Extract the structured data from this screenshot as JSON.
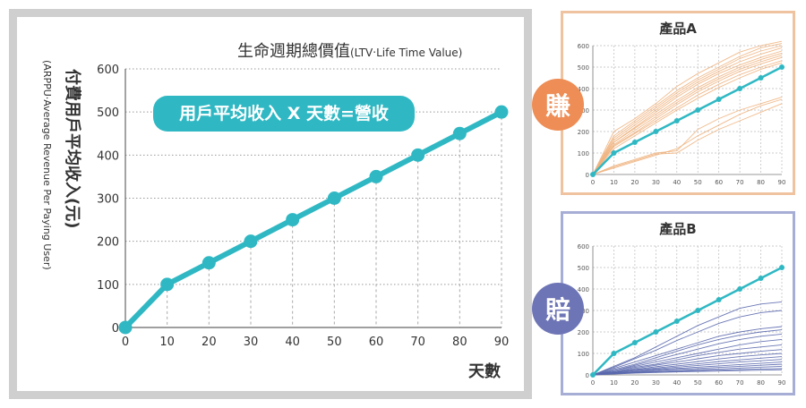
{
  "main": {
    "title": "生命週期總價值",
    "title_sub": "(LTV‧Life Time Value)",
    "ylabel": "付費用戶平均收入(元)",
    "ylabel_sub": "(ARPPU‧Average Revenue Per Paying User)",
    "xlabel": "天數",
    "formula": "用戶平均收入 X 天數=營收"
  },
  "badges": {
    "a": "賺",
    "b": "賠"
  },
  "colors": {
    "teal": "#2fb8c3",
    "orange_line": "#f0b37e",
    "blue_line": "#5a68ad",
    "orange_border": "#f0c3a0",
    "blue_border": "#a7aed6",
    "badge_orange": "#ee8d55",
    "badge_blue": "#6e75b6"
  },
  "chart_data": [
    {
      "type": "line",
      "title": "生命週期總價值(LTV‧Life Time Value)",
      "xlabel": "天數",
      "ylabel": "付費用戶平均收入(元)",
      "x": [
        0,
        10,
        20,
        30,
        40,
        50,
        60,
        70,
        80,
        90
      ],
      "y": [
        0,
        100,
        150,
        200,
        250,
        300,
        350,
        400,
        450,
        500
      ],
      "xlim": [
        0,
        90
      ],
      "ylim": [
        0,
        600
      ],
      "yticks": [
        0,
        100,
        200,
        300,
        400,
        500,
        600
      ],
      "grid": true
    },
    {
      "type": "line",
      "title": "產品A",
      "x": [
        0,
        10,
        20,
        30,
        40,
        50,
        60,
        70,
        80,
        90
      ],
      "xlim": [
        0,
        90
      ],
      "ylim": [
        0,
        600
      ],
      "yticks": [
        0,
        100,
        200,
        300,
        400,
        500,
        600
      ],
      "series": [
        {
          "values": [
            0,
            100,
            150,
            200,
            250,
            300,
            350,
            400,
            450,
            500
          ]
        },
        {
          "values": [
            0,
            200,
            260,
            330,
            410,
            470,
            520,
            570,
            600,
            620
          ]
        },
        {
          "values": [
            0,
            180,
            250,
            320,
            390,
            450,
            500,
            550,
            590,
            610
          ]
        },
        {
          "values": [
            0,
            170,
            240,
            310,
            380,
            440,
            490,
            540,
            575,
            600
          ]
        },
        {
          "values": [
            0,
            160,
            230,
            300,
            370,
            430,
            480,
            525,
            560,
            590
          ]
        },
        {
          "values": [
            0,
            150,
            220,
            290,
            360,
            420,
            470,
            510,
            545,
            575
          ]
        },
        {
          "values": [
            0,
            150,
            215,
            280,
            345,
            405,
            455,
            500,
            535,
            565
          ]
        },
        {
          "values": [
            0,
            140,
            205,
            270,
            335,
            395,
            445,
            490,
            525,
            555
          ]
        },
        {
          "values": [
            0,
            135,
            195,
            260,
            325,
            385,
            435,
            480,
            515,
            545
          ]
        },
        {
          "values": [
            0,
            130,
            190,
            250,
            310,
            370,
            420,
            465,
            500,
            530
          ]
        },
        {
          "values": [
            0,
            120,
            180,
            240,
            300,
            355,
            405,
            450,
            490,
            520
          ]
        },
        {
          "values": [
            0,
            40,
            70,
            100,
            110,
            210,
            260,
            300,
            330,
            360
          ]
        },
        {
          "values": [
            0,
            30,
            60,
            90,
            120,
            180,
            230,
            280,
            320,
            350
          ]
        },
        {
          "values": [
            0,
            35,
            65,
            95,
            100,
            160,
            210,
            250,
            290,
            330
          ]
        }
      ]
    },
    {
      "type": "line",
      "title": "產品B",
      "x": [
        0,
        10,
        20,
        30,
        40,
        50,
        60,
        70,
        80,
        90
      ],
      "xlim": [
        0,
        90
      ],
      "ylim": [
        0,
        600
      ],
      "yticks": [
        0,
        100,
        200,
        300,
        400,
        500,
        600
      ],
      "series": [
        {
          "values": [
            0,
            100,
            150,
            200,
            250,
            300,
            350,
            400,
            450,
            500
          ]
        },
        {
          "values": [
            0,
            40,
            80,
            130,
            180,
            230,
            270,
            310,
            330,
            340
          ]
        },
        {
          "values": [
            0,
            35,
            75,
            115,
            160,
            200,
            240,
            270,
            290,
            300
          ]
        },
        {
          "values": [
            0,
            30,
            60,
            90,
            120,
            150,
            180,
            200,
            215,
            225
          ]
        },
        {
          "values": [
            0,
            25,
            50,
            80,
            110,
            140,
            165,
            185,
            200,
            210
          ]
        },
        {
          "values": [
            0,
            20,
            45,
            70,
            95,
            120,
            145,
            165,
            180,
            190
          ]
        },
        {
          "values": [
            0,
            20,
            40,
            60,
            80,
            100,
            120,
            140,
            155,
            165
          ]
        },
        {
          "values": [
            0,
            15,
            35,
            50,
            70,
            90,
            105,
            120,
            130,
            140
          ]
        },
        {
          "values": [
            0,
            15,
            30,
            45,
            60,
            75,
            90,
            100,
            110,
            118
          ]
        },
        {
          "values": [
            0,
            12,
            25,
            38,
            50,
            62,
            74,
            85,
            93,
            100
          ]
        },
        {
          "values": [
            0,
            10,
            22,
            32,
            42,
            52,
            62,
            70,
            78,
            85
          ]
        },
        {
          "values": [
            0,
            10,
            20,
            28,
            36,
            44,
            52,
            60,
            66,
            72
          ]
        },
        {
          "values": [
            0,
            8,
            16,
            24,
            30,
            36,
            42,
            48,
            54,
            60
          ]
        },
        {
          "values": [
            0,
            8,
            14,
            20,
            26,
            30,
            35,
            40,
            45,
            50
          ]
        },
        {
          "values": [
            0,
            6,
            12,
            16,
            20,
            24,
            28,
            32,
            36,
            40
          ]
        },
        {
          "values": [
            0,
            5,
            10,
            14,
            17,
            20,
            22,
            25,
            28,
            30
          ]
        },
        {
          "values": [
            0,
            4,
            8,
            11,
            14,
            16,
            18,
            20,
            22,
            24
          ]
        }
      ]
    }
  ]
}
